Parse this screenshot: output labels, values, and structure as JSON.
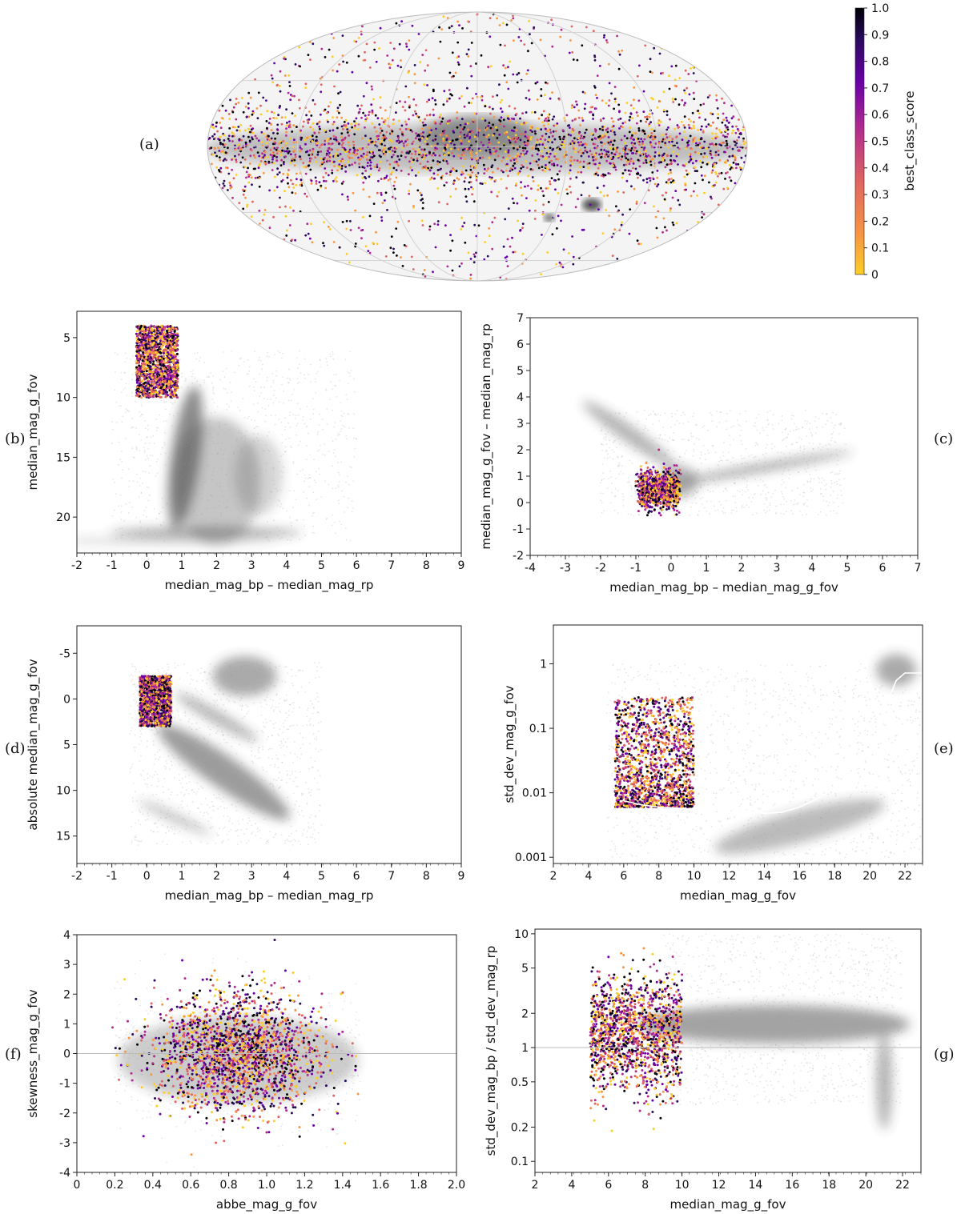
{
  "panel_labels": [
    "(a)",
    "(b)",
    "(c)",
    "(d)",
    "(e)",
    "(f)",
    "(g)"
  ],
  "colorbar": {
    "label": "best_class_score",
    "ticks": [
      "0",
      "0.1",
      "0.2",
      "0.3",
      "0.4",
      "0.5",
      "0.6",
      "0.7",
      "0.8",
      "0.9",
      "1.0"
    ],
    "colormap": [
      "#fcce25",
      "#f89540",
      "#e16462",
      "#b12a90",
      "#6a00a8",
      "#2a0a5e",
      "#000004"
    ]
  },
  "chart_data": [
    {
      "id": "a",
      "type": "scatter",
      "projection": "mollweide-sky-map",
      "description_keys": [
        "galactic plane dense band"
      ],
      "xlabel": "",
      "ylabel": ""
    },
    {
      "id": "b",
      "type": "scatter",
      "xlabel": "median_mag_bp – median_mag_rp",
      "ylabel": "median_mag_g_fov",
      "xlim": [
        -2,
        9
      ],
      "ylim": [
        23,
        2.8
      ],
      "y_inverted": true,
      "xticks": [
        "-2",
        "-1",
        "0",
        "1",
        "2",
        "3",
        "4",
        "5",
        "6",
        "7",
        "8",
        "9"
      ],
      "yticks": [
        "5",
        "10",
        "15",
        "20"
      ],
      "highlighted_region": {
        "x": [
          -0.3,
          0.9
        ],
        "y": [
          3.5,
          10
        ]
      }
    },
    {
      "id": "c",
      "type": "scatter",
      "xlabel": "median_mag_bp – median_mag_g_fov",
      "ylabel": "median_mag_g_fov – median_mag_rp",
      "xlim": [
        -4,
        7
      ],
      "ylim": [
        -2,
        7
      ],
      "xticks": [
        "-4",
        "-3",
        "-2",
        "-1",
        "0",
        "1",
        "2",
        "3",
        "4",
        "5",
        "6",
        "7"
      ],
      "yticks": [
        "-2",
        "-1",
        "0",
        "1",
        "2",
        "3",
        "4",
        "5",
        "6",
        "7"
      ],
      "highlighted_region": {
        "x": [
          -1.2,
          0.4
        ],
        "y": [
          -0.3,
          1.3
        ]
      }
    },
    {
      "id": "d",
      "type": "scatter",
      "xlabel": "median_mag_bp – median_mag_rp",
      "ylabel": "absolute median_mag_g_fov",
      "xlim": [
        -2,
        9
      ],
      "ylim": [
        18,
        -8
      ],
      "y_inverted": true,
      "xticks": [
        "-2",
        "-1",
        "0",
        "1",
        "2",
        "3",
        "4",
        "5",
        "6",
        "7",
        "8",
        "9"
      ],
      "yticks": [
        "-5",
        "0",
        "5",
        "10",
        "15"
      ],
      "highlighted_region": {
        "x": [
          -0.3,
          0.9
        ],
        "y": [
          -3,
          3.5
        ]
      }
    },
    {
      "id": "e",
      "type": "scatter",
      "xlabel": "median_mag_g_fov",
      "ylabel": "std_dev_mag_g_fov",
      "log_y": true,
      "xlim": [
        2,
        23
      ],
      "ylim": [
        0.0008,
        4
      ],
      "xticks": [
        "2",
        "4",
        "6",
        "8",
        "10",
        "12",
        "14",
        "16",
        "18",
        "20",
        "22"
      ],
      "yticks": [
        "0.001",
        "0.01",
        "0.1",
        "1"
      ],
      "median_curve": {
        "x": [
          6,
          7,
          8,
          9,
          10,
          10.5,
          11,
          11.5,
          12,
          12.5,
          13,
          14,
          15,
          16,
          17,
          18,
          19,
          20,
          20.5,
          21,
          21.5,
          22,
          23
        ],
        "y": [
          0.0075,
          0.0065,
          0.006,
          0.0058,
          0.0055,
          0.0058,
          0.005,
          0.0065,
          0.005,
          0.0048,
          0.0052,
          0.0048,
          0.005,
          0.006,
          0.008,
          0.012,
          0.02,
          0.04,
          0.07,
          0.25,
          0.55,
          0.72,
          0.72
        ]
      },
      "highlighted_region": {
        "x": [
          4,
          10
        ],
        "y": [
          0.006,
          0.3
        ]
      }
    },
    {
      "id": "f",
      "type": "scatter",
      "xlabel": "abbe_mag_g_fov",
      "ylabel": "skewness_mag_g_fov",
      "xlim": [
        0,
        2
      ],
      "ylim": [
        -4,
        4
      ],
      "xticks": [
        "0",
        "0.2",
        "0.4",
        "0.6",
        "0.8",
        "1.0",
        "1.2",
        "1.4",
        "1.6",
        "1.8",
        "2.0"
      ],
      "yticks": [
        "-4",
        "-3",
        "-2",
        "-1",
        "0",
        "1",
        "2",
        "3",
        "4"
      ],
      "reference_line_y": 0
    },
    {
      "id": "g",
      "type": "scatter",
      "xlabel": "median_mag_g_fov",
      "ylabel": "std_dev_mag_bp / std_dev_mag_rp",
      "log_y": true,
      "xlim": [
        2,
        23
      ],
      "ylim": [
        0.08,
        11
      ],
      "xticks": [
        "2",
        "4",
        "6",
        "8",
        "10",
        "12",
        "14",
        "16",
        "18",
        "20",
        "22"
      ],
      "yticks": [
        "0.1",
        "0.2",
        "0.5",
        "1",
        "2",
        "5",
        "10"
      ],
      "reference_line_y": 1,
      "highlighted_region": {
        "x": [
          3.5,
          10
        ],
        "y": [
          0.1,
          6
        ]
      }
    }
  ]
}
